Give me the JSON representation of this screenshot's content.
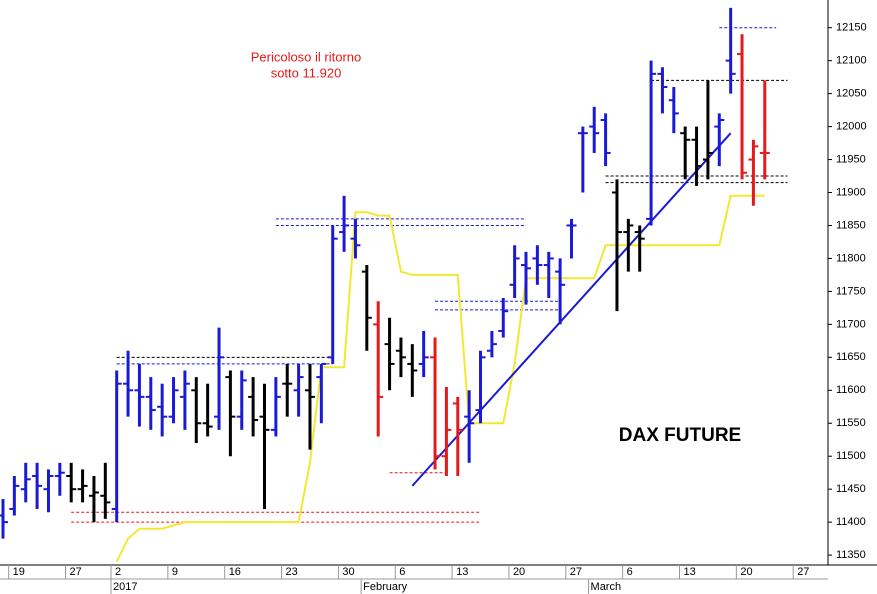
{
  "chart_data": {
    "type": "ohlc",
    "title": "DAX FUTURE",
    "annotation": [
      "Pericoloso il ritorno",
      "sotto 11.920"
    ],
    "ylim": [
      11335,
      12192
    ],
    "yticks": [
      11350,
      11400,
      11450,
      11500,
      11550,
      11600,
      11650,
      11700,
      11750,
      11800,
      11850,
      11900,
      11950,
      12000,
      12050,
      12100,
      12150
    ],
    "categories": [
      null,
      "19",
      null,
      null,
      null,
      null,
      "27",
      null,
      null,
      null,
      "2",
      null,
      null,
      null,
      null,
      "9",
      null,
      null,
      null,
      null,
      "16",
      null,
      null,
      null,
      null,
      "23",
      null,
      null,
      null,
      null,
      "30",
      null,
      null,
      null,
      null,
      "6",
      null,
      null,
      null,
      null,
      "13",
      null,
      null,
      null,
      null,
      "20",
      null,
      null,
      null,
      null,
      "27",
      null,
      null,
      null,
      null,
      "6",
      null,
      null,
      null,
      null,
      "13",
      null,
      null,
      null,
      null,
      "20",
      null,
      null,
      null,
      null,
      "27"
    ],
    "periods": [
      null,
      null,
      null,
      null,
      null,
      null,
      null,
      null,
      null,
      null,
      "2017",
      null,
      null,
      null,
      null,
      null,
      null,
      null,
      null,
      null,
      null,
      null,
      null,
      null,
      null,
      null,
      null,
      null,
      null,
      null,
      null,
      null,
      "February",
      null,
      null,
      null,
      null,
      null,
      null,
      null,
      null,
      null,
      null,
      null,
      null,
      null,
      null,
      null,
      null,
      null,
      null,
      null,
      "March",
      null,
      null,
      null,
      null,
      null,
      null,
      null,
      null,
      null,
      null,
      null,
      null,
      null,
      null,
      null,
      null,
      null,
      null
    ],
    "open": [
      11410,
      11420,
      11450,
      11470,
      11450,
      11470,
      11470,
      11450,
      11440,
      11440,
      11420,
      11610,
      11600,
      11590,
      11575,
      11560,
      11590,
      11600,
      11550,
      11560,
      11620,
      11560,
      11590,
      11560,
      11540,
      11610,
      11600,
      11600,
      11620,
      11650,
      11840,
      11830,
      11780,
      11700,
      11670,
      11660,
      11640,
      11640,
      11650,
      11500,
      11580,
      11560,
      11570,
      11660,
      11690,
      11760,
      11790,
      11800,
      11790,
      11780,
      11850,
      11990,
      12000,
      12010,
      11900,
      11840,
      11840,
      11860,
      12080,
      12040,
      11990,
      11980,
      11950,
      12000,
      12100,
      12110,
      11950,
      11960,
      null,
      null,
      null
    ],
    "high": [
      11435,
      11470,
      11490,
      11490,
      11480,
      11490,
      11490,
      11480,
      11470,
      11490,
      11630,
      11660,
      11640,
      11620,
      11610,
      11620,
      11630,
      11620,
      11610,
      11695,
      11630,
      11630,
      11620,
      11610,
      11620,
      11640,
      11640,
      11640,
      11640,
      11850,
      11895,
      11860,
      11790,
      11735,
      11710,
      11680,
      11670,
      11690,
      11680,
      11605,
      11590,
      11600,
      11660,
      11690,
      11740,
      11820,
      11810,
      11820,
      11810,
      11800,
      11860,
      12000,
      12030,
      12020,
      11920,
      11860,
      11850,
      12100,
      12090,
      12060,
      12000,
      12000,
      12070,
      12020,
      12180,
      12140,
      11980,
      12070,
      null,
      null,
      null
    ],
    "low": [
      11375,
      11410,
      11430,
      11420,
      11415,
      11440,
      11430,
      11430,
      11400,
      11405,
      11400,
      11560,
      11545,
      11540,
      11530,
      11550,
      11540,
      11520,
      11530,
      11540,
      11500,
      11540,
      11530,
      11420,
      11530,
      11560,
      11560,
      11510,
      11550,
      11640,
      11810,
      11800,
      11660,
      11530,
      11600,
      11620,
      11590,
      11620,
      11480,
      11470,
      11470,
      11490,
      11550,
      11650,
      11680,
      11740,
      11730,
      11760,
      11740,
      11700,
      11800,
      11900,
      11960,
      11940,
      11720,
      11780,
      11780,
      11850,
      12020,
      11990,
      11920,
      11910,
      11920,
      11940,
      12050,
      11920,
      11880,
      11920,
      null,
      null,
      null
    ],
    "close": [
      11400,
      11455,
      11465,
      11455,
      11470,
      11475,
      11450,
      11455,
      11445,
      11430,
      11610,
      11600,
      11590,
      11570,
      11560,
      11600,
      11610,
      11550,
      11545,
      11650,
      11560,
      11615,
      11555,
      11540,
      11590,
      11610,
      11620,
      11590,
      11640,
      11830,
      11850,
      11820,
      11710,
      11590,
      11640,
      11650,
      11630,
      11650,
      11500,
      11540,
      11540,
      11550,
      11650,
      11670,
      11720,
      11800,
      11785,
      11790,
      11800,
      11760,
      11850,
      11990,
      11990,
      11960,
      11840,
      11850,
      11830,
      12080,
      12060,
      12020,
      11980,
      11940,
      11960,
      12010,
      12080,
      11930,
      11970,
      11960,
      null,
      null,
      null
    ],
    "colors": [
      "#1a1ad6",
      "#1a1ad6",
      "#1a1ad6",
      "#1a1ad6",
      "#1a1ad6",
      "#1a1ad6",
      "#000000",
      "#000000",
      "#000000",
      "#000000",
      "#1a1ad6",
      "#1a1ad6",
      "#1a1ad6",
      "#1a1ad6",
      "#1a1ad6",
      "#1a1ad6",
      "#1a1ad6",
      "#000000",
      "#000000",
      "#1a1ad6",
      "#000000",
      "#1a1ad6",
      "#000000",
      "#000000",
      "#1a1ad6",
      "#000000",
      "#1a1ad6",
      "#000000",
      "#1a1ad6",
      "#1a1ad6",
      "#1a1ad6",
      "#1a1ad6",
      "#000000",
      "#e41a1a",
      "#000000",
      "#000000",
      "#000000",
      "#1a1ad6",
      "#e41a1a",
      "#e41a1a",
      "#e41a1a",
      "#1a1ad6",
      "#1a1ad6",
      "#1a1ad6",
      "#1a1ad6",
      "#1a1ad6",
      "#1a1ad6",
      "#1a1ad6",
      "#1a1ad6",
      "#1a1ad6",
      "#1a1ad6",
      "#1a1ad6",
      "#1a1ad6",
      "#1a1ad6",
      "#000000",
      "#000000",
      "#000000",
      "#1a1ad6",
      "#1a1ad6",
      "#1a1ad6",
      "#000000",
      "#000000",
      "#000000",
      "#1a1ad6",
      "#1a1ad6",
      "#e41a1a",
      "#e41a1a",
      "#e41a1a",
      null,
      null,
      null
    ],
    "stop_line": {
      "color": "#f2e832",
      "values": [
        null,
        null,
        null,
        null,
        null,
        null,
        null,
        null,
        null,
        null,
        11340,
        11375,
        11390,
        11390,
        11390,
        11395,
        11400,
        11400,
        11400,
        11400,
        11400,
        11400,
        11400,
        11400,
        11400,
        11400,
        11400,
        11490,
        11635,
        11635,
        11635,
        11870,
        11870,
        11865,
        11865,
        11780,
        11775,
        11775,
        11775,
        11775,
        11775,
        11550,
        11550,
        11550,
        11550,
        11640,
        11770,
        11770,
        11770,
        11770,
        11770,
        11770,
        11770,
        11820,
        11820,
        11820,
        11820,
        11820,
        11820,
        11820,
        11820,
        11820,
        11820,
        11820,
        11895,
        11895,
        11895,
        11895,
        null,
        null,
        null
      ]
    },
    "trendline": {
      "color": "#1a1ad6",
      "from": [
        36,
        11455
      ],
      "to": [
        64,
        11990
      ]
    },
    "levels": [
      {
        "value": 11650,
        "from": 10,
        "to": 29,
        "color": "#000000"
      },
      {
        "value": 11640,
        "from": 10,
        "to": 29,
        "color": "#1a1ad6"
      },
      {
        "value": 11415,
        "from": 6,
        "to": 42,
        "color": "#e41a1a"
      },
      {
        "value": 11400,
        "from": 6,
        "to": 42,
        "color": "#e41a1a"
      },
      {
        "value": 11860,
        "from": 24,
        "to": 46,
        "color": "#1a1ad6"
      },
      {
        "value": 11850,
        "from": 24,
        "to": 46,
        "color": "#1a1ad6"
      },
      {
        "value": 11735,
        "from": 38,
        "to": 49,
        "color": "#1a1ad6"
      },
      {
        "value": 11722,
        "from": 38,
        "to": 49,
        "color": "#1a1ad6"
      },
      {
        "value": 11475,
        "from": 34,
        "to": 39,
        "color": "#e41a1a"
      },
      {
        "value": 11925,
        "from": 53,
        "to": 69,
        "color": "#000000"
      },
      {
        "value": 11915,
        "from": 53,
        "to": 69,
        "color": "#000000"
      },
      {
        "value": 12070,
        "from": 57,
        "to": 69,
        "color": "#000000"
      },
      {
        "value": 12150,
        "from": 63,
        "to": 68,
        "color": "#1a1ad6"
      }
    ]
  }
}
